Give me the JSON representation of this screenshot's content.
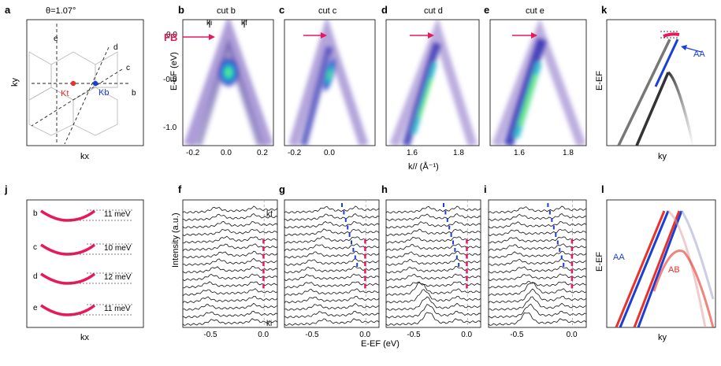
{
  "panels": {
    "a": {
      "letter": "a",
      "title": "θ=1.07°",
      "xlabel": "kx",
      "ylabel": "ky",
      "cut_labels": [
        "e",
        "d",
        "c",
        "b"
      ],
      "k_left": "Kt",
      "k_right": "Kb",
      "colors": {
        "k_left": "#e8322a",
        "k_right": "#1a3fd6"
      }
    },
    "b": {
      "letter": "b",
      "title": "cut b",
      "marker_i": "ki",
      "marker_f": "kf",
      "fb_label": "FB"
    },
    "c": {
      "letter": "c",
      "title": "cut c"
    },
    "d": {
      "letter": "d",
      "title": "cut d"
    },
    "e": {
      "letter": "e",
      "title": "cut e"
    },
    "k": {
      "letter": "k",
      "xlabel": "ky",
      "ylabel": "E-EF",
      "aa_label": "AA",
      "colors": {
        "aa": "#1a3fd6",
        "flat": "#e8195a"
      }
    },
    "j": {
      "letter": "j",
      "xlabel": "kx",
      "rows": [
        {
          "label": "b",
          "value": "11 meV"
        },
        {
          "label": "c",
          "value": "10 meV"
        },
        {
          "label": "d",
          "value": "12 meV"
        },
        {
          "label": "e",
          "value": "11 meV"
        }
      ]
    },
    "f": {
      "letter": "f",
      "top_label": "kf",
      "bottom_label": "ki"
    },
    "g": {
      "letter": "g"
    },
    "h": {
      "letter": "h"
    },
    "i": {
      "letter": "i"
    },
    "l": {
      "letter": "l",
      "xlabel": "ky",
      "ylabel": "E-EF",
      "aa_label": "AA",
      "ab_label": "AB",
      "colors": {
        "aa": "#1a3fd6",
        "ab": "#e8322a"
      }
    }
  },
  "arpes_axes": {
    "ylabel": "E-EF (eV)",
    "yticks": [
      "0.0",
      "-0.5",
      "-1.0"
    ],
    "xlabel": "k// (Å⁻¹)",
    "xticks_b": [
      "-0.2",
      "0.0",
      "0.2"
    ],
    "xticks_c": [
      "-0.2",
      "0.0"
    ],
    "xticks_d": [
      "1.6",
      "1.8"
    ],
    "xticks_e": [
      "1.6",
      "1.8"
    ]
  },
  "edc_axes": {
    "ylabel": "Intensity (a.u.)",
    "xlabel": "E-EF (eV)",
    "xticks": [
      "-0.5",
      "0.0"
    ]
  },
  "chart_data": {
    "type": "line",
    "title": "",
    "xlabel": "E-EF (eV)",
    "ylabel": "Intensity (a.u.)",
    "xlim": [
      -0.85,
      0.1
    ],
    "series_count_per_panel": 16
  },
  "colors": {
    "fb_arrow": "#e8195a",
    "aa_blue": "#1a3fd6",
    "ab_red": "#e8322a",
    "grey_band": "#777777"
  }
}
